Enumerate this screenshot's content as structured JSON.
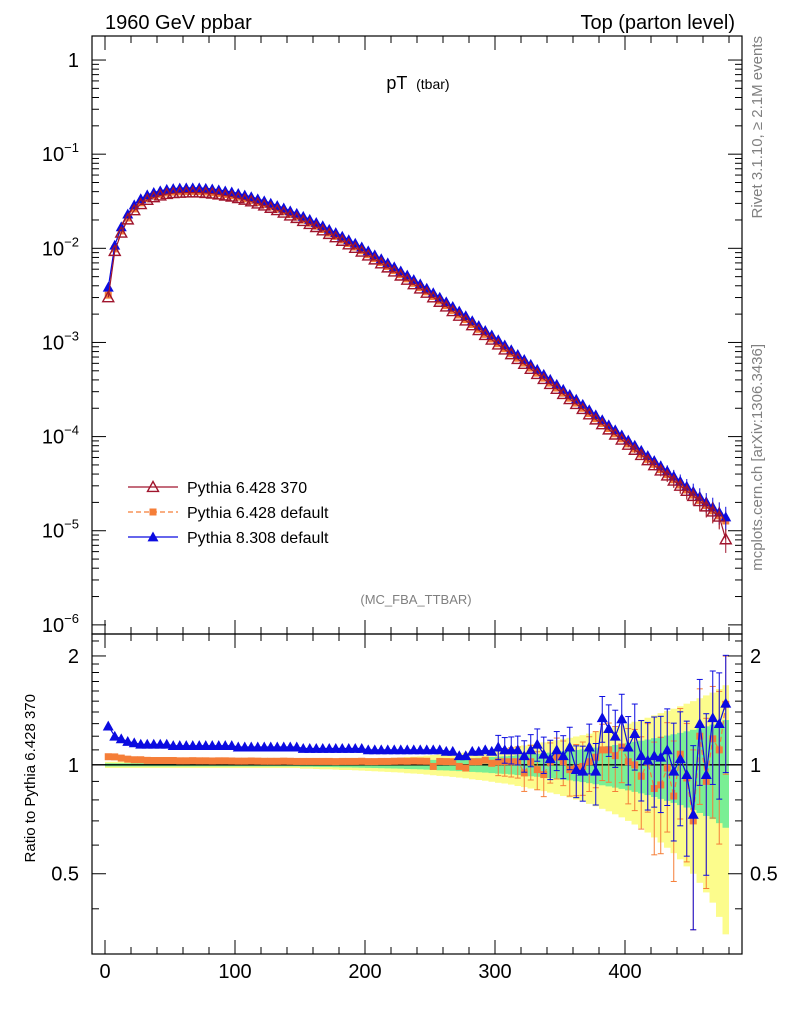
{
  "header": {
    "left": "1960 GeV ppbar",
    "right": "Top (parton level)"
  },
  "side_labels": {
    "rivet": "Rivet 3.1.10, ≥ 2.1M events",
    "mcplots": "mcplots.cern.ch [arXiv:1306.3436]"
  },
  "chart_data": [
    {
      "type": "line",
      "title": "pT",
      "title_sub": "(tbar)",
      "watermark": "(MC_FBA_TTBAR)",
      "yscale": "log",
      "xlim": [
        -10,
        490
      ],
      "ylim": [
        8e-07,
        1.8
      ],
      "y_ticks": [
        {
          "v": 1,
          "base": "1",
          "exp": ""
        },
        {
          "v": 0.1,
          "base": "10",
          "exp": "−1"
        },
        {
          "v": 0.01,
          "base": "10",
          "exp": "−2"
        },
        {
          "v": 0.001,
          "base": "10",
          "exp": "−3"
        },
        {
          "v": 0.0001,
          "base": "10",
          "exp": "−4"
        },
        {
          "v": 1e-05,
          "base": "10",
          "exp": "−5"
        },
        {
          "v": 1e-06,
          "base": "10",
          "exp": "−6"
        }
      ],
      "x": [
        2.5,
        7.5,
        12.5,
        17.5,
        22.5,
        27.5,
        32.5,
        37.5,
        42.5,
        47.5,
        52.5,
        57.5,
        62.5,
        67.5,
        72.5,
        77.5,
        82.5,
        87.5,
        92.5,
        97.5,
        102.5,
        107.5,
        112.5,
        117.5,
        122.5,
        127.5,
        132.5,
        137.5,
        142.5,
        147.5,
        152.5,
        157.5,
        162.5,
        167.5,
        172.5,
        177.5,
        182.5,
        187.5,
        192.5,
        197.5,
        202.5,
        207.5,
        212.5,
        217.5,
        222.5,
        227.5,
        232.5,
        237.5,
        242.5,
        247.5,
        252.5,
        257.5,
        262.5,
        267.5,
        272.5,
        277.5,
        282.5,
        287.5,
        292.5,
        297.5,
        302.5,
        307.5,
        312.5,
        317.5,
        322.5,
        327.5,
        332.5,
        337.5,
        342.5,
        347.5,
        352.5,
        357.5,
        362.5,
        367.5,
        372.5,
        377.5,
        382.5,
        387.5,
        392.5,
        397.5,
        402.5,
        407.5,
        412.5,
        417.5,
        422.5,
        427.5,
        432.5,
        437.5,
        442.5,
        447.5,
        452.5,
        457.5,
        462.5,
        467.5,
        472.5,
        477.5
      ],
      "series": [
        {
          "name": "Pythia 6.428 370",
          "marker": "triangle-open",
          "color": "#a0152d",
          "values": [
            0.00302,
            0.00937,
            0.01465,
            0.02024,
            0.02536,
            0.02946,
            0.03266,
            0.0348,
            0.0364,
            0.0377,
            0.0385,
            0.0389,
            0.0391,
            0.0392,
            0.0391,
            0.0387,
            0.0381,
            0.0373,
            0.0363,
            0.0354,
            0.0341,
            0.0328,
            0.0315,
            0.0299,
            0.0285,
            0.0269,
            0.0254,
            0.0239,
            0.0223,
            0.021,
            0.0195,
            0.0181,
            0.0168,
            0.0155,
            0.0142,
            0.0131,
            0.012,
            0.011,
            0.0101,
            0.00922,
            0.00838,
            0.00761,
            0.00692,
            0.00626,
            0.00567,
            0.00513,
            0.00463,
            0.00415,
            0.00374,
            0.00337,
            0.00301,
            0.0027,
            0.00241,
            0.00215,
            0.00192,
            0.00171,
            0.00152,
            0.00135,
            0.0012,
            0.00107,
            0.00095,
            0.00084,
            0.00075,
            0.000667,
            0.000591,
            0.000524,
            0.000462,
            0.000409,
            0.000362,
            0.000321,
            0.000283,
            0.00025,
            0.000222,
            0.000196,
            0.000172,
            0.000152,
            0.000135,
            0.000119,
            0.000105,
            9.27e-05,
            8.19e-05,
            7.23e-05,
            6.37e-05,
            5.61e-05,
            4.96e-05,
            4.36e-05,
            3.86e-05,
            3.4e-05,
            3e-05,
            2.65e-05,
            2.34e-05,
            2.06e-05,
            1.81e-05,
            1.6e-05,
            1.41e-05,
            8.1e-06
          ]
        },
        {
          "name": "Pythia 6.428 default",
          "marker": "square",
          "color": "#f57e38",
          "values": [
            0.00318,
            0.00986,
            0.01529,
            0.02098,
            0.0262,
            0.03042,
            0.03362,
            0.03578,
            0.03743,
            0.03875,
            0.03957,
            0.0399,
            0.04012,
            0.04024,
            0.04014,
            0.03971,
            0.03907,
            0.03825,
            0.03725,
            0.03629,
            0.03493,
            0.0336,
            0.03228,
            0.03063,
            0.02917,
            0.02753,
            0.02599,
            0.02446,
            0.02281,
            0.02146,
            0.01993,
            0.0185,
            0.01717,
            0.01584,
            0.01451,
            0.01338,
            0.01226,
            0.01124,
            0.01032,
            0.00943,
            0.00856,
            0.00777,
            0.00707,
            0.0064,
            0.0058,
            0.00525,
            0.00474,
            0.00425,
            0.00383,
            0.00345,
            0.00308,
            0.00276,
            0.00246,
            0.00219,
            0.00196,
            0.00175,
            0.00155,
            0.00138,
            0.00122,
            0.00109,
            0.00097,
            0.000858,
            0.000765,
            0.000681,
            0.000603,
            0.000535,
            0.000472,
            0.000418,
            0.00037,
            0.000328,
            0.000289,
            0.000256,
            0.000227,
            0.0002,
            0.000176,
            0.000155,
            0.000138,
            0.000122,
            0.000107,
            9.48e-05,
            8.36e-05,
            7.39e-05,
            6.51e-05,
            5.73e-05,
            5.07e-05,
            4.46e-05,
            3.94e-05,
            3.48e-05,
            3.06e-05,
            2.71e-05,
            2.39e-05,
            2.1e-05,
            1.85e-05,
            1.63e-05,
            1.44e-05,
            1.27e-05
          ]
        },
        {
          "name": "Pythia 8.308 default",
          "marker": "triangle",
          "color": "#0b0be0",
          "values": [
            0.00386,
            0.01078,
            0.0169,
            0.02308,
            0.0289,
            0.03358,
            0.03691,
            0.03915,
            0.04077,
            0.04222,
            0.04312,
            0.04357,
            0.04379,
            0.0439,
            0.04379,
            0.04334,
            0.04267,
            0.04178,
            0.04066,
            0.03965,
            0.03819,
            0.03674,
            0.03528,
            0.03349,
            0.03192,
            0.03013,
            0.02845,
            0.02677,
            0.02498,
            0.02352,
            0.02184,
            0.02027,
            0.01882,
            0.01736,
            0.0159,
            0.01467,
            0.01344,
            0.01232,
            0.01131,
            0.01033,
            0.00939,
            0.00852,
            0.00775,
            0.00701,
            0.00635,
            0.00575,
            0.00519,
            0.00465,
            0.00419,
            0.00377,
            0.00337,
            0.00302,
            0.0027,
            0.00241,
            0.00215,
            0.00192,
            0.0017,
            0.00151,
            0.00134,
            0.0012,
            0.00107,
            0.000941,
            0.000836,
            0.000744,
            0.00066,
            0.000585,
            0.000517,
            0.000458,
            0.000405,
            0.000359,
            0.000317,
            0.00028,
            0.000249,
            0.00022,
            0.000193,
            0.00017,
            0.000151,
            0.000133,
            0.000118,
            0.000104,
            9.17e-05,
            8.1e-05,
            7.14e-05,
            6.28e-05,
            5.56e-05,
            4.88e-05,
            4.32e-05,
            3.81e-05,
            3.36e-05,
            2.97e-05,
            2.62e-05,
            2.31e-05,
            2.03e-05,
            1.79e-05,
            1.58e-05,
            1.4e-05
          ]
        }
      ],
      "legend_position": "bottom-left"
    },
    {
      "type": "line",
      "ylabel": "Ratio to Pythia 6.428 370",
      "xlim": [
        -10,
        490
      ],
      "ylim": [
        0.3,
        2.3
      ],
      "x_ticks": [
        0,
        100,
        200,
        300,
        400
      ],
      "y_ticks": [
        0.5,
        1,
        2
      ],
      "x": [
        2.5,
        7.5,
        12.5,
        17.5,
        22.5,
        27.5,
        32.5,
        37.5,
        42.5,
        47.5,
        52.5,
        57.5,
        62.5,
        67.5,
        72.5,
        77.5,
        82.5,
        87.5,
        92.5,
        97.5,
        102.5,
        107.5,
        112.5,
        117.5,
        122.5,
        127.5,
        132.5,
        137.5,
        142.5,
        147.5,
        152.5,
        157.5,
        162.5,
        167.5,
        172.5,
        177.5,
        182.5,
        187.5,
        192.5,
        197.5,
        202.5,
        207.5,
        212.5,
        217.5,
        222.5,
        227.5,
        232.5,
        237.5,
        242.5,
        247.5,
        252.5,
        257.5,
        262.5,
        267.5,
        272.5,
        277.5,
        282.5,
        287.5,
        292.5,
        297.5,
        302.5,
        307.5,
        312.5,
        317.5,
        322.5,
        327.5,
        332.5,
        337.5,
        342.5,
        347.5,
        352.5,
        357.5,
        362.5,
        367.5,
        372.5,
        377.5,
        382.5,
        387.5,
        392.5,
        397.5,
        402.5,
        407.5,
        412.5,
        417.5,
        422.5,
        427.5,
        432.5,
        437.5,
        442.5,
        447.5,
        452.5,
        457.5,
        462.5,
        467.5,
        472.5,
        477.5
      ],
      "band_halfwidth": [
        0.01,
        0.01,
        0.01,
        0.01,
        0.01,
        0.01,
        0.01,
        0.01,
        0.01,
        0.01,
        0.01,
        0.01,
        0.01,
        0.01,
        0.01,
        0.01,
        0.01,
        0.01,
        0.01,
        0.01,
        0.01,
        0.01,
        0.01,
        0.01,
        0.01,
        0.01,
        0.01,
        0.01,
        0.01,
        0.01,
        0.012,
        0.012,
        0.013,
        0.014,
        0.014,
        0.015,
        0.016,
        0.016,
        0.017,
        0.018,
        0.019,
        0.02,
        0.021,
        0.022,
        0.023,
        0.024,
        0.026,
        0.027,
        0.028,
        0.03,
        0.032,
        0.034,
        0.035,
        0.037,
        0.039,
        0.041,
        0.044,
        0.046,
        0.048,
        0.051,
        0.054,
        0.056,
        0.059,
        0.063,
        0.066,
        0.07,
        0.073,
        0.077,
        0.081,
        0.085,
        0.09,
        0.094,
        0.099,
        0.104,
        0.11,
        0.116,
        0.122,
        0.128,
        0.135,
        0.142,
        0.15,
        0.158,
        0.166,
        0.175,
        0.185,
        0.195,
        0.205,
        0.215,
        0.226,
        0.238,
        0.25,
        0.264,
        0.278,
        0.292,
        0.31,
        0.33
      ],
      "series": [
        {
          "name": "Pythia 6.428 default",
          "marker": "square",
          "color": "#f57e38",
          "values": [
            1.053,
            1.052,
            1.044,
            1.037,
            1.033,
            1.033,
            1.029,
            1.028,
            1.028,
            1.028,
            1.028,
            1.026,
            1.026,
            1.027,
            1.026,
            1.026,
            1.025,
            1.026,
            1.026,
            1.025,
            1.024,
            1.024,
            1.025,
            1.024,
            1.023,
            1.023,
            1.023,
            1.024,
            1.023,
            1.022,
            1.022,
            1.022,
            1.022,
            1.022,
            1.022,
            1.021,
            1.022,
            1.022,
            1.022,
            1.023,
            1.021,
            1.021,
            1.022,
            1.022,
            1.023,
            1.024,
            1.023,
            1.025,
            1.024,
            1.023,
            0.99,
            1.022,
            1.021,
            1.02,
            0.99,
            0.98,
            1.02,
            1.02,
            1.03,
            1.01,
            1.02,
            1.02,
            1.02,
            1.02,
            0.95,
            1.02,
            0.97,
            0.94,
            1.02,
            1.05,
            1.02,
            0.97,
            0.98,
            0.99,
            1.02,
            1.05,
            1.1,
            1.1,
            1.06,
            1.12,
            1.02,
            1.0,
            0.93,
            1.02,
            0.86,
            0.88,
            0.98,
            0.82,
            1.07,
            0.92,
            0.7,
            1.2,
            0.9,
            1.18,
            1.1,
            1.47
          ]
        },
        {
          "name": "Pythia 8.308 default",
          "marker": "triangle",
          "color": "#0b0be0",
          "values": [
            1.28,
            1.2,
            1.18,
            1.16,
            1.15,
            1.14,
            1.14,
            1.14,
            1.14,
            1.14,
            1.13,
            1.13,
            1.13,
            1.13,
            1.13,
            1.13,
            1.13,
            1.13,
            1.13,
            1.13,
            1.12,
            1.12,
            1.12,
            1.12,
            1.12,
            1.12,
            1.12,
            1.12,
            1.12,
            1.12,
            1.11,
            1.11,
            1.11,
            1.11,
            1.11,
            1.11,
            1.11,
            1.11,
            1.11,
            1.11,
            1.1,
            1.1,
            1.1,
            1.1,
            1.1,
            1.1,
            1.1,
            1.1,
            1.1,
            1.1,
            1.1,
            1.1,
            1.09,
            1.09,
            1.06,
            1.06,
            1.09,
            1.09,
            1.1,
            1.09,
            1.12,
            1.1,
            1.1,
            1.1,
            1.06,
            1.1,
            1.14,
            1.07,
            1.04,
            1.1,
            1.06,
            1.12,
            0.97,
            0.96,
            1.12,
            0.96,
            1.35,
            1.26,
            1.2,
            1.34,
            1.12,
            1.22,
            1.06,
            1.03,
            1.06,
            1.05,
            1.1,
            0.96,
            1.04,
            0.94,
            0.73,
            1.3,
            0.94,
            1.35,
            1.3,
            1.48
          ]
        }
      ]
    }
  ],
  "colors": {
    "band_inner": "#7aef94",
    "band_outer": "#fcfc8c",
    "reference_line": "#000000"
  }
}
